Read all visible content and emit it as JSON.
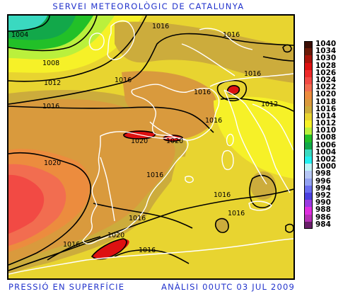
{
  "header": {
    "title": "SERVEI METEOROLÒGIC DE CATALUNYA"
  },
  "footer": {
    "left": "PRESSIÓ EN SUPERFÍCIE",
    "right": "ANÀLISI 00UTC 03 JUL 2009"
  },
  "legend": [
    {
      "label": "1040",
      "color": "#3a0e05"
    },
    {
      "label": "1034",
      "color": "#6a1a08"
    },
    {
      "label": "1030",
      "color": "#a8140a"
    },
    {
      "label": "1028",
      "color": "#dd1111"
    },
    {
      "label": "1026",
      "color": "#ee2a2a"
    },
    {
      "label": "1024",
      "color": "#f24a44"
    },
    {
      "label": "1022",
      "color": "#f26d50"
    },
    {
      "label": "1020",
      "color": "#ec8c3e"
    },
    {
      "label": "1018",
      "color": "#d99a3d"
    },
    {
      "label": "1016",
      "color": "#ccac3c"
    },
    {
      "label": "1014",
      "color": "#e8d430"
    },
    {
      "label": "1012",
      "color": "#f6f128"
    },
    {
      "label": "1010",
      "color": "#baf03c"
    },
    {
      "label": "1008",
      "color": "#22c028"
    },
    {
      "label": "1006",
      "color": "#12a84a"
    },
    {
      "label": "1004",
      "color": "#3ad9c0"
    },
    {
      "label": "1002",
      "color": "#22f0f0"
    },
    {
      "label": "1000",
      "color": "#bdf2f7"
    },
    {
      "label": "998",
      "color": "#b5c6f4"
    },
    {
      "label": "996",
      "color": "#93a2f2"
    },
    {
      "label": "994",
      "color": "#6a6ef0"
    },
    {
      "label": "992",
      "color": "#4a40e0"
    },
    {
      "label": "990",
      "color": "#9a3ae0"
    },
    {
      "label": "988",
      "color": "#e02ee0"
    },
    {
      "label": "986",
      "color": "#b530b5"
    },
    {
      "label": "984",
      "color": "#6a1f6a"
    }
  ],
  "isobar_labels": [
    {
      "text": "1004"
    },
    {
      "text": "1016"
    },
    {
      "text": "1016"
    },
    {
      "text": "1008"
    },
    {
      "text": "1012"
    },
    {
      "text": "1016"
    },
    {
      "text": "1016"
    },
    {
      "text": "1016"
    },
    {
      "text": "1016"
    },
    {
      "text": "1012"
    },
    {
      "text": "1016"
    },
    {
      "text": "1020"
    },
    {
      "text": "1020"
    },
    {
      "text": "1020"
    },
    {
      "text": "1016"
    },
    {
      "text": "1016"
    },
    {
      "text": "1016"
    },
    {
      "text": "1016"
    },
    {
      "text": "1020"
    },
    {
      "text": "1016"
    },
    {
      "text": "1016"
    }
  ]
}
